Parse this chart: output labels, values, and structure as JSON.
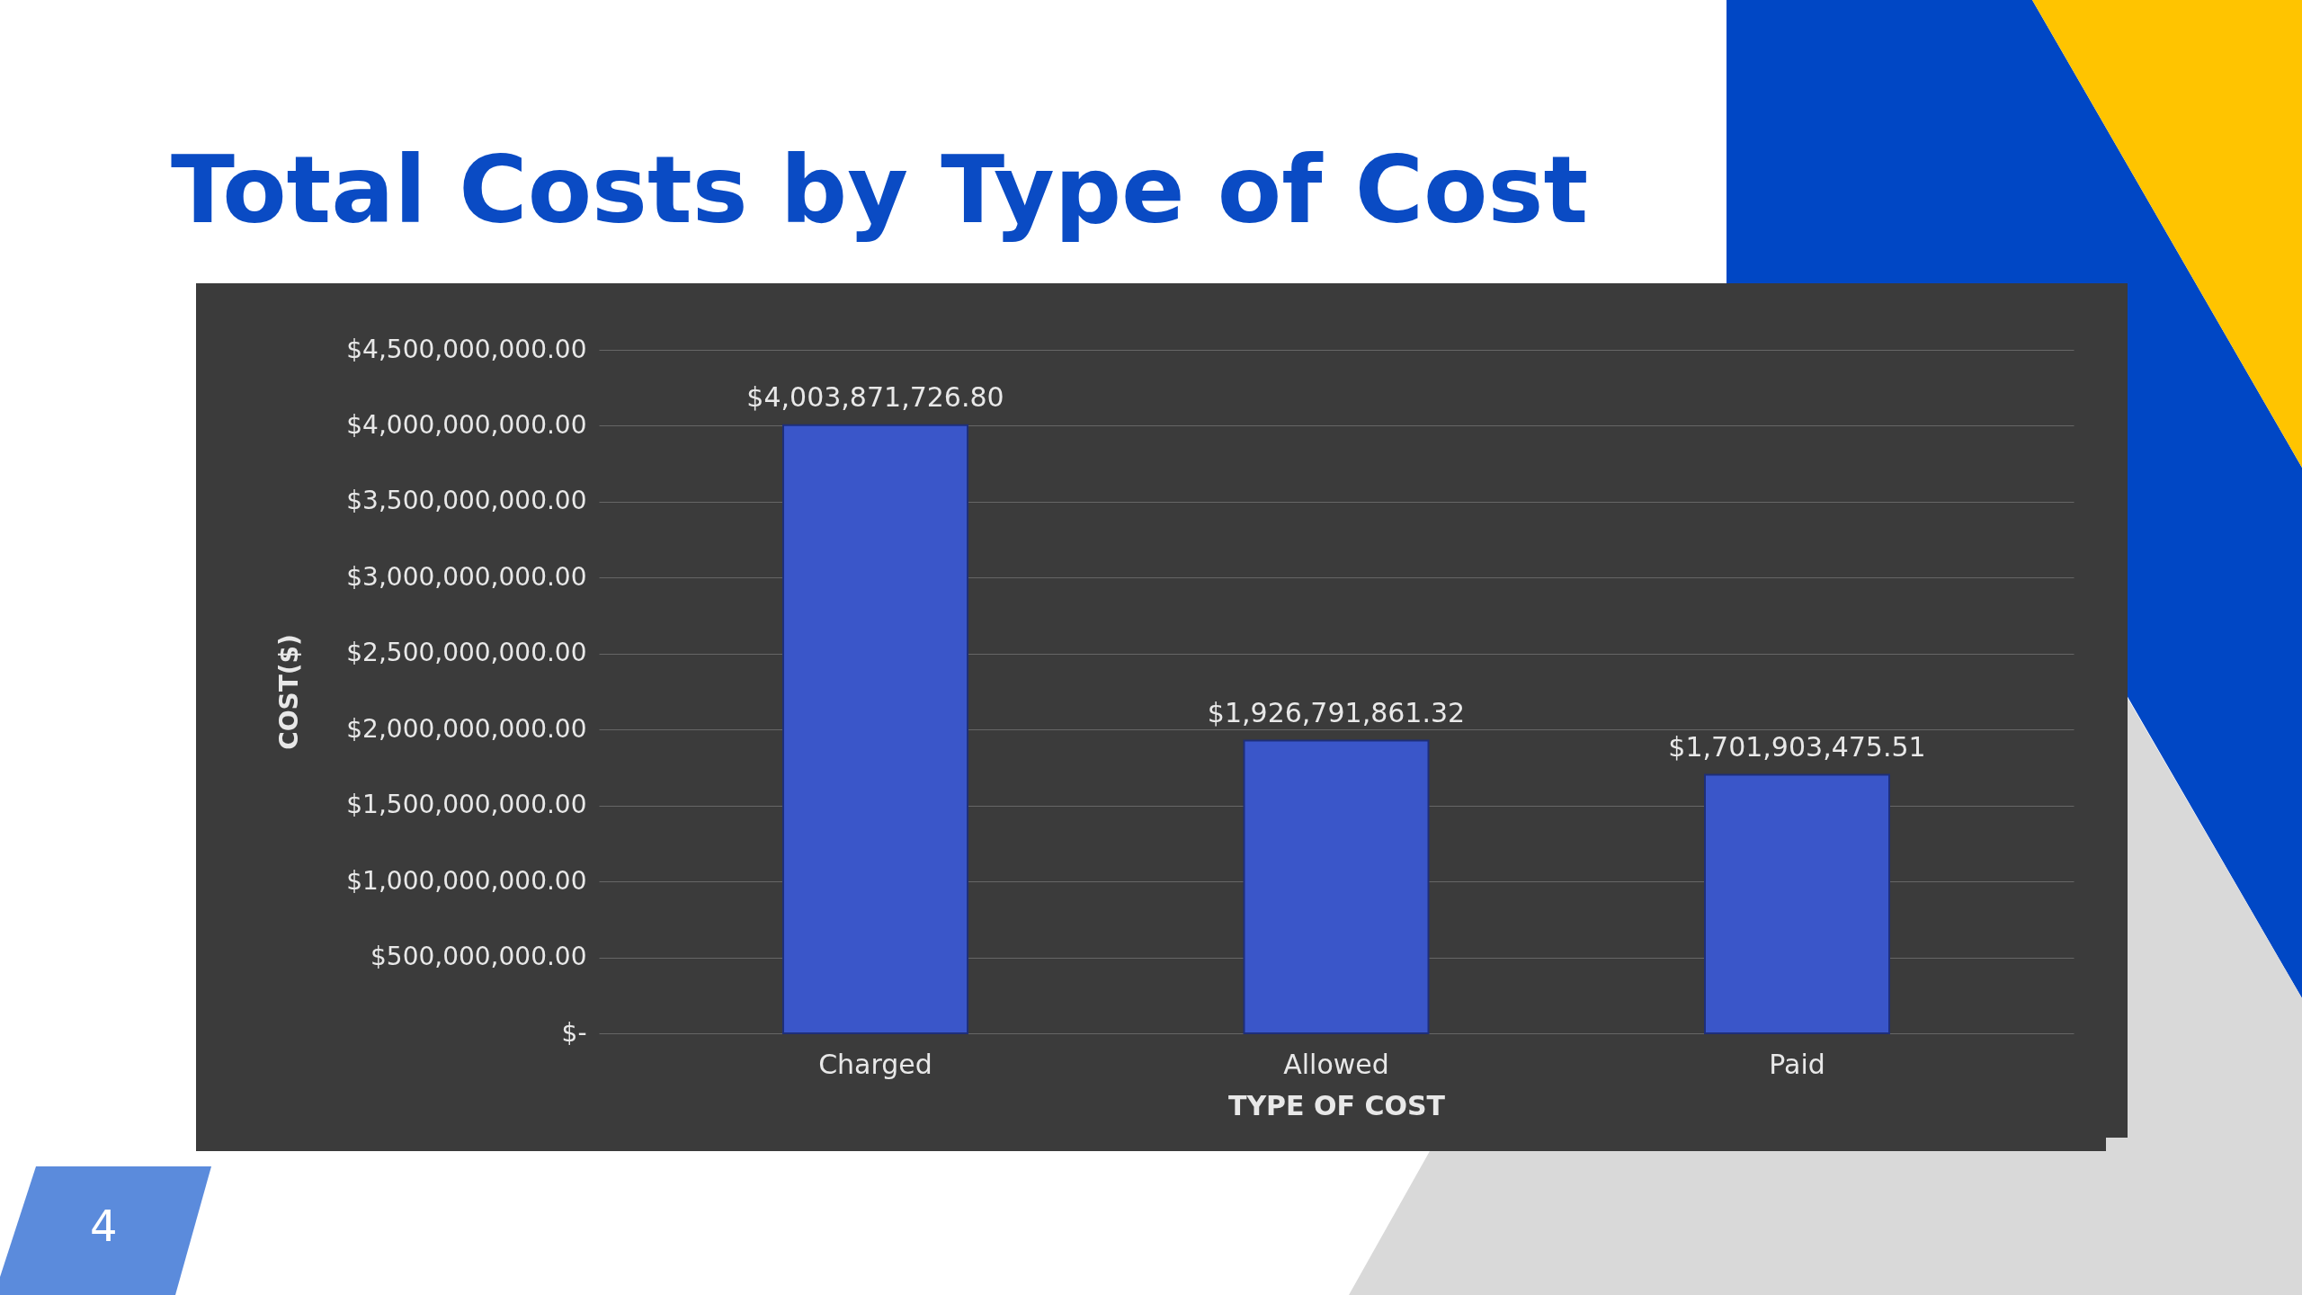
{
  "chart_data": {
    "type": "bar",
    "title": "Total Costs by Type of Cost",
    "xlabel": "TYPE OF COST",
    "ylabel": "COST($)",
    "categories": [
      "Charged",
      "Allowed",
      "Paid"
    ],
    "values": [
      4003871726.8,
      1926791861.32,
      1701903475.51
    ],
    "value_labels": [
      "$4,003,871,726.80",
      "$1,926,791,861.32",
      "$1,701,903,475.51"
    ],
    "color": "#3a56c9",
    "ylim": [
      0,
      4500000000
    ],
    "yticks": [
      {
        "value": 0,
        "label": "$-"
      },
      {
        "value": 500000000,
        "label": "$500,000,000.00"
      },
      {
        "value": 1000000000,
        "label": "$1,000,000,000.00"
      },
      {
        "value": 1500000000,
        "label": "$1,500,000,000.00"
      },
      {
        "value": 2000000000,
        "label": "$2,000,000,000.00"
      },
      {
        "value": 2500000000,
        "label": "$2,500,000,000.00"
      },
      {
        "value": 3000000000,
        "label": "$3,000,000,000.00"
      },
      {
        "value": 3500000000,
        "label": "$3,500,000,000.00"
      },
      {
        "value": 4000000000,
        "label": "$4,000,000,000.00"
      },
      {
        "value": 4500000000,
        "label": "$4,500,000,000.00"
      }
    ],
    "grid": "y",
    "annotations": [
      "4"
    ]
  }
}
